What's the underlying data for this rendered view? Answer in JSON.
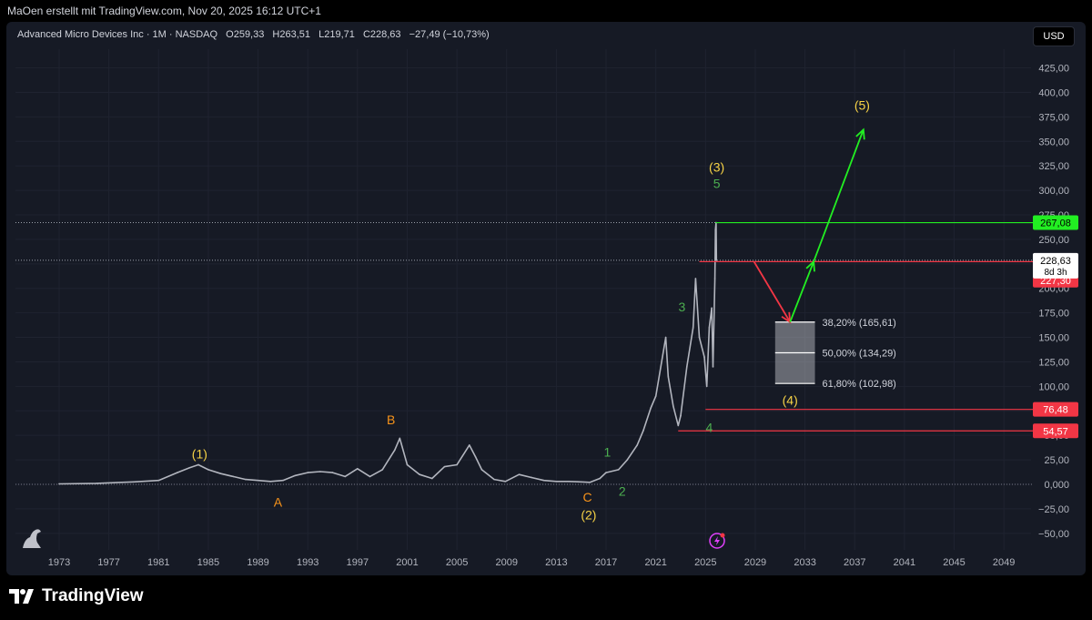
{
  "header": {
    "credit": "MaOen erstellt mit TradingView.com, Nov 20, 2025 16:12 UTC+1"
  },
  "legend": {
    "symbol": "Advanced Micro Devices Inc · 1M · NASDAQ",
    "open_key": "O",
    "open": "259,33",
    "high_key": "H",
    "high": "263,51",
    "low_key": "L",
    "low": "219,71",
    "close_key": "C",
    "close": "228,63",
    "change": "−27,49 (−10,73%)"
  },
  "currency_button": "USD",
  "brand": {
    "name": "TradingView",
    "logo_icon": "tradingview-logo"
  },
  "colors": {
    "background": "#161a25",
    "price_line": "#b2b5be",
    "green": "#22ee22",
    "red": "#f23645",
    "wave_yellow": "#f7d346",
    "wave_green": "#4caf50",
    "wave_orange": "#f7931a"
  },
  "chart_data": {
    "type": "line",
    "y_scale": "linear",
    "ylim": [
      -60,
      450
    ],
    "xlim": [
      1971,
      2050
    ],
    "y_ticks": [
      -50,
      -25,
      0,
      25,
      50,
      75,
      100,
      125,
      150,
      175,
      200,
      225,
      250,
      275,
      300,
      325,
      350,
      375,
      400,
      425
    ],
    "y_tick_labels": [
      "−50,00",
      "−25,00",
      "0,000",
      "25,00",
      "50,00",
      "75,00",
      "100,00",
      "125,00",
      "150,00",
      "175,00",
      "200,00",
      "225,00",
      "250,00",
      "275,00",
      "300,00",
      "325,00",
      "350,00",
      "375,00",
      "400,00",
      "425,00"
    ],
    "x_ticks": [
      1973,
      1977,
      1981,
      1985,
      1989,
      1993,
      1997,
      2001,
      2005,
      2009,
      2013,
      2017,
      2021,
      2025,
      2029,
      2033,
      2037,
      2041,
      2045,
      2049
    ],
    "x_tick_labels": [
      "1973",
      "1977",
      "1981",
      "1985",
      "1989",
      "1993",
      "1997",
      "2001",
      "2005",
      "2009",
      "2013",
      "2017",
      "2021",
      "2025",
      "2029",
      "2033",
      "2037",
      "2041",
      "2045",
      "2049"
    ],
    "series": [
      {
        "x": [
          1973,
          1976,
          1979,
          1981,
          1982.5,
          1983.5,
          1984.2,
          1985,
          1986,
          1987,
          1988,
          1989,
          1990,
          1991,
          1992,
          1993,
          1994,
          1995,
          1996,
          1997,
          1998,
          1999,
          2000,
          2000.4,
          2001,
          2002,
          2003,
          2004,
          2005,
          2006,
          2006.5,
          2007,
          2008,
          2008.9,
          2010,
          2011,
          2012,
          2013,
          2014,
          2015,
          2015.7,
          2016.5,
          2017,
          2018,
          2018.7,
          2019.5,
          2020,
          2020.6,
          2021,
          2021.8,
          2022,
          2022.4,
          2022.8,
          2023,
          2023.5,
          2024.0,
          2024.2,
          2024.5,
          2024.9,
          2025.1,
          2025.3,
          2025.5,
          2025.6,
          2025.75,
          2025.8,
          2025.85,
          2025.88
        ],
        "y": [
          0.5,
          1.0,
          2.5,
          4.0,
          12.0,
          17.0,
          20.0,
          15.0,
          11.0,
          8.0,
          5.0,
          4.0,
          3.0,
          4.0,
          9.0,
          12.0,
          13.0,
          12.0,
          8.0,
          16.0,
          8.0,
          15.0,
          35.0,
          47.0,
          20.0,
          10.0,
          6.0,
          18.0,
          20.0,
          40.0,
          28.0,
          15.0,
          5.0,
          3.0,
          10.0,
          7.0,
          4.0,
          3.0,
          3.0,
          2.5,
          2.0,
          6.0,
          12.0,
          15.0,
          25.0,
          40.0,
          55.0,
          78.0,
          90.0,
          150.0,
          110.0,
          80.0,
          60.0,
          70.0,
          120.0,
          160.0,
          210.0,
          150.0,
          130.0,
          100.0,
          160.0,
          180.0,
          120.0,
          210.0,
          260.0,
          267.08,
          228.63
        ]
      }
    ],
    "wave_labels": [
      {
        "text": "(1)",
        "x": 1984.3,
        "y": 31,
        "color": "wave_yellow"
      },
      {
        "text": "A",
        "x": 1990.6,
        "y": -18,
        "color": "wave_orange"
      },
      {
        "text": "B",
        "x": 1999.7,
        "y": 66,
        "color": "wave_orange"
      },
      {
        "text": "C",
        "x": 2015.5,
        "y": -13,
        "color": "wave_orange"
      },
      {
        "text": "(2)",
        "x": 2015.6,
        "y": -31,
        "color": "wave_yellow"
      },
      {
        "text": "1",
        "x": 2017.1,
        "y": 33,
        "color": "wave_green"
      },
      {
        "text": "2",
        "x": 2018.3,
        "y": -7,
        "color": "wave_green"
      },
      {
        "text": "3",
        "x": 2023.1,
        "y": 181,
        "color": "wave_green"
      },
      {
        "text": "4",
        "x": 2025.3,
        "y": 58,
        "color": "wave_green"
      },
      {
        "text": "5",
        "x": 2025.9,
        "y": 307,
        "color": "wave_green"
      },
      {
        "text": "(3)",
        "x": 2025.9,
        "y": 324,
        "color": "wave_yellow"
      },
      {
        "text": "(4)",
        "x": 2031.8,
        "y": 86,
        "color": "wave_yellow"
      },
      {
        "text": "(5)",
        "x": 2037.6,
        "y": 387,
        "color": "wave_yellow"
      }
    ],
    "price_levels": [
      {
        "label": "267,08",
        "value": 267.08,
        "x_start": 2025.8,
        "color": "green"
      },
      {
        "label": "227,30",
        "value": 227.3,
        "x_start": 2024.5,
        "color": "red"
      },
      {
        "label": "76,48",
        "value": 76.48,
        "x_start": 2025.0,
        "color": "red"
      },
      {
        "label": "54,57",
        "value": 54.57,
        "x_start": 2022.8,
        "color": "red"
      }
    ],
    "current_price": {
      "label": "228,63",
      "countdown": "8d 3h",
      "value": 228.63
    },
    "fibonacci_zone": {
      "x_start": 2030.6,
      "x_end": 2033.8,
      "levels": [
        {
          "label": "38,20% (165,61)",
          "value": 165.61
        },
        {
          "label": "50,00% (134,29)",
          "value": 134.29
        },
        {
          "label": "61,80% (102,98)",
          "value": 102.98
        }
      ]
    },
    "projections": [
      {
        "color": "red",
        "x": [
          2028.9,
          2031.8
        ],
        "y": [
          227.3,
          165.6
        ]
      },
      {
        "color": "green",
        "x": [
          2031.8,
          2033.7,
          2037.7
        ],
        "y": [
          165.6,
          227.3,
          362.0
        ]
      }
    ]
  }
}
